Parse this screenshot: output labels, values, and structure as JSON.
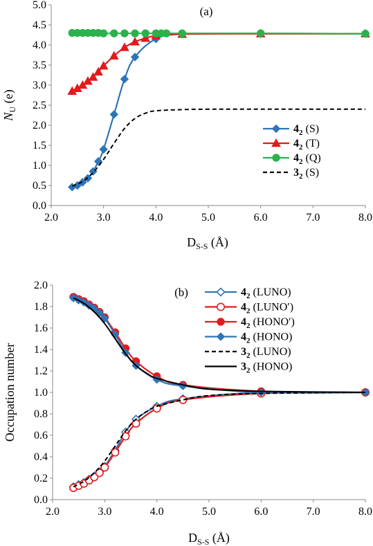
{
  "chart_data": [
    {
      "type": "line",
      "panel": "(a)",
      "xlabel": {
        "main": "D",
        "sub": "S-S",
        "unit": " (Å)"
      },
      "ylabel": {
        "main": "N",
        "sub": "U",
        "unit": " (e)"
      },
      "xlim": [
        2.0,
        8.0
      ],
      "ylim": [
        0.0,
        5.0
      ],
      "xticks": [
        "2.0",
        "3.0",
        "4.0",
        "5.0",
        "6.0",
        "7.0",
        "8.0"
      ],
      "yticks": [
        "0.0",
        "0.5",
        "1.0",
        "1.5",
        "2.0",
        "2.5",
        "3.0",
        "3.5",
        "4.0",
        "4.5",
        "5.0"
      ],
      "grid": false,
      "legend_position": "right",
      "series": [
        {
          "name": "S",
          "compound": "4",
          "sub": "2",
          "color": "#2E75B6",
          "marker": "diamond",
          "dash": "",
          "x": [
            2.4,
            2.5,
            2.6,
            2.7,
            2.8,
            2.9,
            3.0,
            3.2,
            3.4,
            3.6,
            4.0,
            4.5,
            6.0,
            8.0
          ],
          "y": [
            0.46,
            0.5,
            0.58,
            0.68,
            0.85,
            1.1,
            1.4,
            2.27,
            3.15,
            3.7,
            4.15,
            4.27,
            4.28,
            4.28
          ]
        },
        {
          "name": "T",
          "compound": "4",
          "sub": "2",
          "color": "#E31A1C",
          "marker": "triangle",
          "dash": "",
          "x": [
            2.4,
            2.5,
            2.6,
            2.7,
            2.8,
            2.9,
            3.0,
            3.2,
            3.4,
            3.6,
            3.8,
            4.0,
            4.5,
            6.0,
            8.0
          ],
          "y": [
            2.85,
            2.92,
            3.0,
            3.1,
            3.2,
            3.33,
            3.48,
            3.73,
            3.94,
            4.08,
            4.17,
            4.23,
            4.27,
            4.28,
            4.28
          ]
        },
        {
          "name": "Q",
          "compound": "4",
          "sub": "2",
          "color": "#2BB24C",
          "marker": "circle",
          "dash": "",
          "x": [
            2.4,
            2.5,
            2.6,
            2.7,
            2.8,
            2.9,
            3.0,
            3.2,
            3.4,
            3.6,
            3.8,
            4.0,
            4.1,
            4.2,
            4.5,
            6.0,
            8.0
          ],
          "y": [
            4.3,
            4.3,
            4.3,
            4.3,
            4.3,
            4.3,
            4.29,
            4.29,
            4.29,
            4.29,
            4.29,
            4.29,
            4.29,
            4.29,
            4.29,
            4.29,
            4.28
          ]
        },
        {
          "name": "S",
          "compound": "3",
          "sub": "2",
          "color": "#000000",
          "marker": "none",
          "dash": "6,4",
          "x": [
            2.4,
            2.6,
            2.8,
            3.0,
            3.2,
            3.4,
            3.6,
            3.8,
            4.0,
            4.5,
            5.0,
            6.0,
            8.0
          ],
          "y": [
            0.48,
            0.6,
            0.82,
            1.15,
            1.55,
            1.92,
            2.17,
            2.3,
            2.36,
            2.39,
            2.4,
            2.4,
            2.4
          ]
        }
      ]
    },
    {
      "type": "line",
      "panel": "(b)",
      "xlabel": {
        "main": "D",
        "sub": "S-S",
        "unit": " (Å)"
      },
      "ylabel": {
        "main": "Occupation number",
        "sub": "",
        "unit": ""
      },
      "xlim": [
        2.0,
        8.0
      ],
      "ylim": [
        0.0,
        2.0
      ],
      "xticks": [
        "2.0",
        "3.0",
        "4.0",
        "5.0",
        "6.0",
        "7.0",
        "8.0"
      ],
      "yticks": [
        "0.0",
        "0.2",
        "0.4",
        "0.6",
        "0.8",
        "1.0",
        "1.2",
        "1.4",
        "1.6",
        "1.8",
        "2.0"
      ],
      "grid": false,
      "legend_position": "top-right",
      "series": [
        {
          "name": "LUNO",
          "compound": "4",
          "sub": "2",
          "color": "#2E75B6",
          "marker": "diamond-open",
          "dash": "",
          "x": [
            2.4,
            2.5,
            2.6,
            2.7,
            2.8,
            2.9,
            3.0,
            3.2,
            3.4,
            3.6,
            4.0,
            4.5,
            6.0,
            8.0
          ],
          "y": [
            0.12,
            0.14,
            0.16,
            0.19,
            0.22,
            0.26,
            0.31,
            0.46,
            0.63,
            0.75,
            0.87,
            0.94,
            1.0,
            1.0
          ]
        },
        {
          "name": "LUNO′",
          "compound": "4",
          "sub": "2",
          "color": "#E31A1C",
          "marker": "circle-open",
          "dash": "",
          "x": [
            2.4,
            2.5,
            2.6,
            2.7,
            2.8,
            2.9,
            3.0,
            3.2,
            3.4,
            3.6,
            4.0,
            4.5,
            6.0,
            8.0
          ],
          "y": [
            0.11,
            0.13,
            0.15,
            0.18,
            0.21,
            0.25,
            0.3,
            0.44,
            0.59,
            0.71,
            0.85,
            0.93,
            0.99,
            1.0
          ]
        },
        {
          "name": "HONO′",
          "compound": "4",
          "sub": "2",
          "color": "#E31A1C",
          "marker": "circle",
          "dash": "",
          "x": [
            2.4,
            2.5,
            2.6,
            2.7,
            2.8,
            2.9,
            3.0,
            3.2,
            3.4,
            3.6,
            4.0,
            4.5,
            6.0,
            8.0
          ],
          "y": [
            1.89,
            1.87,
            1.85,
            1.82,
            1.79,
            1.75,
            1.7,
            1.56,
            1.41,
            1.29,
            1.15,
            1.07,
            1.01,
            1.0
          ]
        },
        {
          "name": "HONO",
          "compound": "4",
          "sub": "2",
          "color": "#2E75B6",
          "marker": "diamond",
          "dash": "",
          "x": [
            2.4,
            2.5,
            2.6,
            2.7,
            2.8,
            2.9,
            3.0,
            3.2,
            3.4,
            3.6,
            4.0,
            4.5,
            6.0,
            8.0
          ],
          "y": [
            1.88,
            1.86,
            1.84,
            1.81,
            1.78,
            1.74,
            1.69,
            1.54,
            1.37,
            1.25,
            1.12,
            1.06,
            1.0,
            1.0
          ]
        },
        {
          "name": "LUNO",
          "compound": "3",
          "sub": "2",
          "color": "#000000",
          "marker": "none",
          "dash": "6,4",
          "x": [
            2.4,
            2.6,
            2.8,
            3.0,
            3.2,
            3.4,
            3.6,
            3.8,
            4.0,
            4.5,
            5.0,
            6.0,
            8.0
          ],
          "y": [
            0.12,
            0.17,
            0.25,
            0.36,
            0.5,
            0.64,
            0.75,
            0.82,
            0.87,
            0.93,
            0.97,
            0.99,
            1.0
          ]
        },
        {
          "name": "HONO",
          "compound": "3",
          "sub": "2",
          "color": "#000000",
          "marker": "none",
          "dash": "",
          "x": [
            2.4,
            2.6,
            2.8,
            3.0,
            3.2,
            3.4,
            3.6,
            3.8,
            4.0,
            4.5,
            5.0,
            6.0,
            8.0
          ],
          "y": [
            1.88,
            1.83,
            1.75,
            1.64,
            1.5,
            1.36,
            1.25,
            1.18,
            1.13,
            1.07,
            1.03,
            1.01,
            1.0
          ]
        }
      ]
    }
  ]
}
